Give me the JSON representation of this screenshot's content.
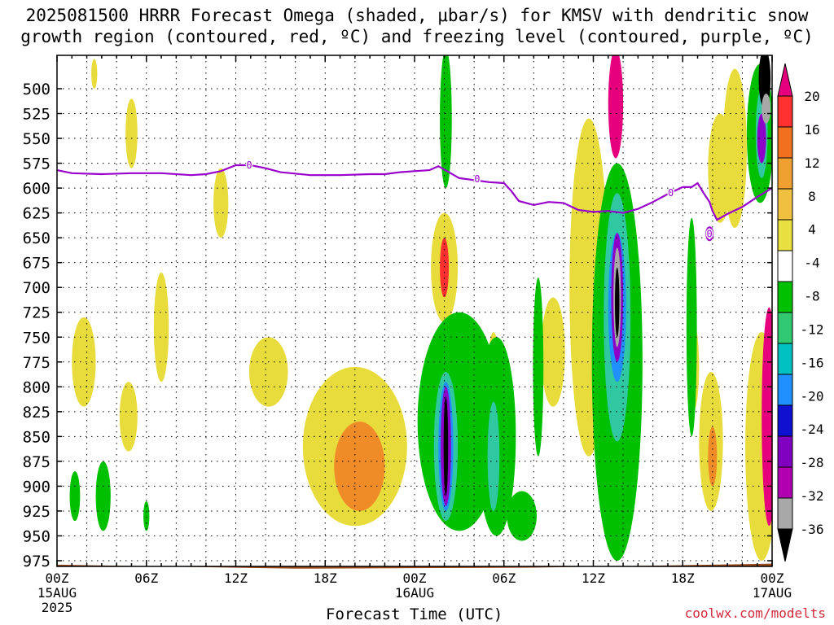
{
  "title_line1": "2025081500 HRRR Forecast Omega (shaded, μbar/s) for KMSV with dendritic snow",
  "title_line2": "growth region (contoured, red, ºC) and freezing level (contoured, purple, ºC)",
  "credit": "coolwx.com/modelts",
  "chart_data": {
    "type": "time-height",
    "xlabel": "Forecast Time (UTC)",
    "x_range_hours": [
      0,
      48
    ],
    "x_ticks": [
      {
        "hour": 0,
        "label": "00Z",
        "sub": "15AUG",
        "year": "2025"
      },
      {
        "hour": 6,
        "label": "06Z"
      },
      {
        "hour": 12,
        "label": "12Z"
      },
      {
        "hour": 18,
        "label": "18Z"
      },
      {
        "hour": 24,
        "label": "00Z",
        "sub": "16AUG"
      },
      {
        "hour": 30,
        "label": "06Z"
      },
      {
        "hour": 36,
        "label": "12Z"
      },
      {
        "hour": 42,
        "label": "18Z"
      },
      {
        "hour": 48,
        "label": "00Z",
        "sub": "17AUG"
      }
    ],
    "y_axis": "pressure_hPa",
    "y_range": [
      985,
      470
    ],
    "y_ticks": [
      500,
      525,
      550,
      575,
      600,
      625,
      650,
      675,
      700,
      725,
      750,
      775,
      800,
      825,
      850,
      875,
      900,
      925,
      950,
      975
    ],
    "grid": true,
    "colorbar": {
      "labels": [
        20,
        16,
        12,
        8,
        4,
        -4,
        -8,
        -12,
        -16,
        -20,
        -24,
        -28,
        -32,
        -36
      ],
      "colors": [
        "#e6007e",
        "#ff3030",
        "#f07020",
        "#f0a030",
        "#f0c040",
        "#e8e040",
        "#ffffff",
        "#00c000",
        "#30c870",
        "#00c0c0",
        "#2090ff",
        "#1010d0",
        "#8000c0",
        "#b000b0",
        "#a8a8a8",
        "#000000"
      ]
    },
    "freezing_level": {
      "label": "0",
      "color": "#9900cc",
      "points": [
        [
          0,
          582
        ],
        [
          1,
          585
        ],
        [
          3,
          586
        ],
        [
          5,
          585
        ],
        [
          7,
          585
        ],
        [
          9,
          587
        ],
        [
          10,
          586
        ],
        [
          11,
          583
        ],
        [
          12,
          577
        ],
        [
          13,
          577
        ],
        [
          14,
          580
        ],
        [
          15,
          584
        ],
        [
          17,
          587
        ],
        [
          19,
          587
        ],
        [
          21,
          586
        ],
        [
          22,
          586
        ],
        [
          23,
          584
        ],
        [
          24,
          583
        ],
        [
          25,
          582
        ],
        [
          25.6,
          578
        ],
        [
          26.3,
          584
        ],
        [
          27,
          590
        ],
        [
          28,
          592
        ],
        [
          29,
          594
        ],
        [
          30,
          595
        ],
        [
          30.5,
          603
        ],
        [
          31,
          613
        ],
        [
          32,
          617
        ],
        [
          33,
          614
        ],
        [
          34,
          615
        ],
        [
          35,
          622
        ],
        [
          36,
          624
        ],
        [
          37,
          623
        ],
        [
          38,
          625
        ],
        [
          39,
          621
        ],
        [
          40,
          614
        ],
        [
          41,
          606
        ],
        [
          42,
          599
        ],
        [
          42.6,
          599
        ],
        [
          43,
          595
        ],
        [
          43.4,
          605
        ],
        [
          43.8,
          614
        ],
        [
          44,
          623
        ],
        [
          44.3,
          632
        ],
        [
          45,
          626
        ],
        [
          46,
          619
        ],
        [
          47,
          609
        ],
        [
          48,
          600
        ]
      ]
    },
    "omega_regions": [
      {
        "level": "yellow",
        "t": 1.8,
        "p": 775,
        "dt": 0.8,
        "dp": 45
      },
      {
        "level": "yellow",
        "t": 2.5,
        "p": 485,
        "dt": 0.2,
        "dp": 15
      },
      {
        "level": "yellow",
        "t": 5,
        "p": 545,
        "dt": 0.4,
        "dp": 35
      },
      {
        "level": "yellow",
        "t": 4.8,
        "p": 830,
        "dt": 0.6,
        "dp": 35
      },
      {
        "level": "yellow",
        "t": 7,
        "p": 740,
        "dt": 0.5,
        "dp": 55
      },
      {
        "level": "yellow",
        "t": 11,
        "p": 615,
        "dt": 0.5,
        "dp": 35
      },
      {
        "level": "yellow",
        "t": 14.2,
        "p": 785,
        "dt": 1.3,
        "dp": 35
      },
      {
        "level": "yellow",
        "t": 20,
        "p": 860,
        "dt": 3.5,
        "dp": 80
      },
      {
        "level": "orange",
        "t": 20.3,
        "p": 880,
        "dt": 1.7,
        "dp": 45
      },
      {
        "level": "yellow",
        "t": 26,
        "p": 680,
        "dt": 0.9,
        "dp": 55
      },
      {
        "level": "red",
        "t": 26,
        "p": 680,
        "dt": 0.3,
        "dp": 30
      },
      {
        "level": "yellow",
        "t": 29.3,
        "p": 790,
        "dt": 0.4,
        "dp": 45
      },
      {
        "level": "yellow",
        "t": 33.3,
        "p": 765,
        "dt": 0.8,
        "dp": 55
      },
      {
        "level": "yellow",
        "t": 35.7,
        "p": 700,
        "dt": 1.3,
        "dp": 170
      },
      {
        "level": "yellow",
        "t": 36.9,
        "p": 820,
        "dt": 0.6,
        "dp": 70
      },
      {
        "level": "yellow",
        "t": 38.3,
        "p": 820,
        "dt": 0.3,
        "dp": 30
      },
      {
        "level": "magenta",
        "t": 37.5,
        "p": 515,
        "dt": 0.5,
        "dp": 55
      },
      {
        "level": "yellow",
        "t": 42.7,
        "p": 780,
        "dt": 0.4,
        "dp": 45
      },
      {
        "level": "yellow",
        "t": 44.5,
        "p": 580,
        "dt": 0.8,
        "dp": 55
      },
      {
        "level": "yellow",
        "t": 43.9,
        "p": 855,
        "dt": 0.8,
        "dp": 70
      },
      {
        "level": "orange",
        "t": 44,
        "p": 870,
        "dt": 0.3,
        "dp": 30
      },
      {
        "level": "yellow",
        "t": 45.5,
        "p": 560,
        "dt": 0.8,
        "dp": 80
      },
      {
        "level": "yellow",
        "t": 47.3,
        "p": 860,
        "dt": 1.1,
        "dp": 115
      },
      {
        "level": "magenta",
        "t": 47.8,
        "p": 830,
        "dt": 0.5,
        "dp": 110
      },
      {
        "level": "green",
        "t": 1.2,
        "p": 910,
        "dt": 0.35,
        "dp": 25
      },
      {
        "level": "green",
        "t": 3.1,
        "p": 910,
        "dt": 0.5,
        "dp": 35
      },
      {
        "level": "green",
        "t": 6,
        "p": 930,
        "dt": 0.2,
        "dp": 15
      },
      {
        "level": "green",
        "t": 26.1,
        "p": 530,
        "dt": 0.4,
        "dp": 70
      },
      {
        "level": "green",
        "t": 27,
        "p": 835,
        "dt": 2.8,
        "dp": 110
      },
      {
        "level": "cyan",
        "t": 26.1,
        "p": 860,
        "dt": 0.8,
        "dp": 75
      },
      {
        "level": "blue",
        "t": 26.1,
        "p": 860,
        "dt": 0.5,
        "dp": 65
      },
      {
        "level": "purple",
        "t": 26.1,
        "p": 860,
        "dt": 0.35,
        "dp": 60
      },
      {
        "level": "black",
        "t": 26.1,
        "p": 860,
        "dt": 0.15,
        "dp": 50
      },
      {
        "level": "green",
        "t": 29.5,
        "p": 850,
        "dt": 1.3,
        "dp": 100
      },
      {
        "level": "cyan",
        "t": 29.3,
        "p": 870,
        "dt": 0.4,
        "dp": 55
      },
      {
        "level": "green",
        "t": 31.2,
        "p": 930,
        "dt": 1,
        "dp": 25
      },
      {
        "level": "green",
        "t": 32.3,
        "p": 780,
        "dt": 0.35,
        "dp": 90
      },
      {
        "level": "green",
        "t": 37.6,
        "p": 775,
        "dt": 1.7,
        "dp": 200
      },
      {
        "level": "cyan",
        "t": 37.6,
        "p": 730,
        "dt": 0.9,
        "dp": 125
      },
      {
        "level": "blue",
        "t": 37.6,
        "p": 720,
        "dt": 0.6,
        "dp": 75
      },
      {
        "level": "purple",
        "t": 37.6,
        "p": 710,
        "dt": 0.4,
        "dp": 65
      },
      {
        "level": "gray",
        "t": 37.6,
        "p": 710,
        "dt": 0.25,
        "dp": 50
      },
      {
        "level": "black",
        "t": 37.6,
        "p": 715,
        "dt": 0.15,
        "dp": 35
      },
      {
        "level": "green",
        "t": 42.6,
        "p": 740,
        "dt": 0.35,
        "dp": 110
      },
      {
        "level": "green",
        "t": 47.2,
        "p": 545,
        "dt": 0.9,
        "dp": 70
      },
      {
        "level": "cyan",
        "t": 47.3,
        "p": 545,
        "dt": 0.4,
        "dp": 45
      },
      {
        "level": "purple",
        "t": 47.3,
        "p": 550,
        "dt": 0.3,
        "dp": 25
      },
      {
        "level": "black",
        "t": 47.5,
        "p": 490,
        "dt": 0.4,
        "dp": 30
      },
      {
        "level": "gray",
        "t": 47.6,
        "p": 520,
        "dt": 0.3,
        "dp": 15
      }
    ],
    "ground": {
      "color": "#9c4a1e",
      "surface_hPa": [
        979,
        983,
        982,
        978
      ]
    }
  }
}
